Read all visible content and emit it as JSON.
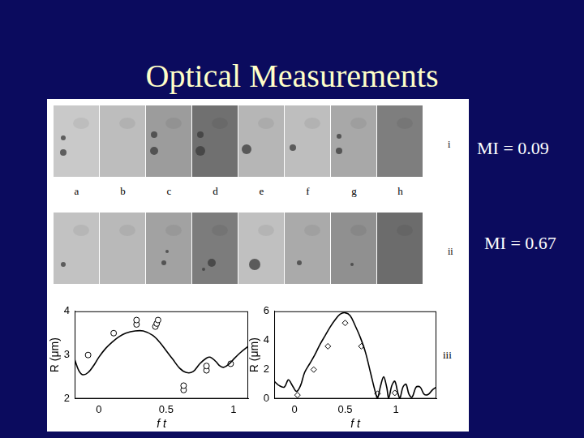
{
  "slide": {
    "title": "Optical Measurements",
    "frame_labels": [
      "a",
      "b",
      "c",
      "d",
      "e",
      "f",
      "g",
      "h"
    ],
    "rows": [
      {
        "label": "i",
        "annotation": "MI = 0.09"
      },
      {
        "label": "ii",
        "annotation": "MI = 0.67"
      }
    ],
    "chart_row_label": "iii"
  },
  "chart_data": [
    {
      "type": "line",
      "x_label": "f t",
      "y_label": "R (μm)",
      "xlim": [
        -0.18,
        1.11
      ],
      "ylim": [
        2,
        4
      ],
      "xticks": [
        0,
        0.5,
        1
      ],
      "yticks": [
        2,
        3,
        4
      ],
      "grid": false,
      "series": [
        {
          "type": "line",
          "color": "#000000",
          "line_style": "solid",
          "x": [
            -0.18,
            -0.15,
            -0.12,
            -0.08,
            -0.03,
            0,
            0.05,
            0.1,
            0.15,
            0.2,
            0.27,
            0.33,
            0.4,
            0.45,
            0.5,
            0.55,
            0.6,
            0.65,
            0.7,
            0.75,
            0.8,
            0.83,
            0.87,
            0.9,
            0.93,
            0.97,
            1.0,
            1.05,
            1.11
          ],
          "values": [
            2.9,
            2.65,
            2.55,
            2.6,
            2.8,
            2.95,
            3.15,
            3.3,
            3.42,
            3.5,
            3.55,
            3.55,
            3.45,
            3.3,
            3.1,
            2.9,
            2.7,
            2.6,
            2.62,
            2.8,
            2.93,
            2.95,
            2.85,
            2.75,
            2.72,
            2.8,
            2.9,
            3.05,
            3.2
          ]
        },
        {
          "type": "scatter",
          "color": "#000000",
          "marker": "circle",
          "x": [
            -0.08,
            0.11,
            0.28,
            0.28,
            0.42,
            0.43,
            0.44,
            0.63,
            0.63,
            0.8,
            0.8,
            0.98
          ],
          "values": [
            3.0,
            3.5,
            3.7,
            3.8,
            3.65,
            3.72,
            3.8,
            2.2,
            2.3,
            2.65,
            2.75,
            2.8
          ]
        }
      ]
    },
    {
      "type": "line",
      "x_label": "f t",
      "y_label": "R (μm)",
      "xlim": [
        -0.2,
        1.4
      ],
      "ylim": [
        0,
        6
      ],
      "xticks": [
        0,
        0.5,
        1
      ],
      "yticks": [
        0,
        2,
        4,
        6
      ],
      "grid": false,
      "series": [
        {
          "type": "line",
          "color": "#000000",
          "line_style": "solid",
          "x": [
            -0.2,
            -0.15,
            -0.1,
            -0.06,
            -0.02,
            0.02,
            0.06,
            0.1,
            0.15,
            0.2,
            0.25,
            0.3,
            0.35,
            0.4,
            0.45,
            0.5,
            0.55,
            0.6,
            0.65,
            0.7,
            0.75,
            0.8,
            0.82,
            0.85,
            0.88,
            0.91,
            0.93,
            0.96,
            0.99,
            1.02,
            1.04,
            1.07,
            1.1,
            1.13,
            1.16,
            1.2,
            1.24,
            1.28,
            1.32,
            1.36,
            1.4
          ],
          "values": [
            1.2,
            0.9,
            0.8,
            1.3,
            0.9,
            0.5,
            0.9,
            1.8,
            2.4,
            3.0,
            3.7,
            4.3,
            4.9,
            5.4,
            5.8,
            5.9,
            5.7,
            5.0,
            4.2,
            3.2,
            1.8,
            0.4,
            0.05,
            0.9,
            1.5,
            0.8,
            0.05,
            0.9,
            1.2,
            0.4,
            0.05,
            0.8,
            1.0,
            0.3,
            0.1,
            0.8,
            0.8,
            0.3,
            0.3,
            0.6,
            0.8
          ]
        },
        {
          "type": "scatter",
          "color": "#000000",
          "marker": "diamond",
          "x": [
            0.03,
            0.19,
            0.33,
            0.5,
            0.66,
            0.82,
            0.99
          ],
          "values": [
            0.25,
            2.0,
            3.6,
            5.2,
            3.6,
            0.35,
            0.4
          ]
        }
      ]
    }
  ]
}
